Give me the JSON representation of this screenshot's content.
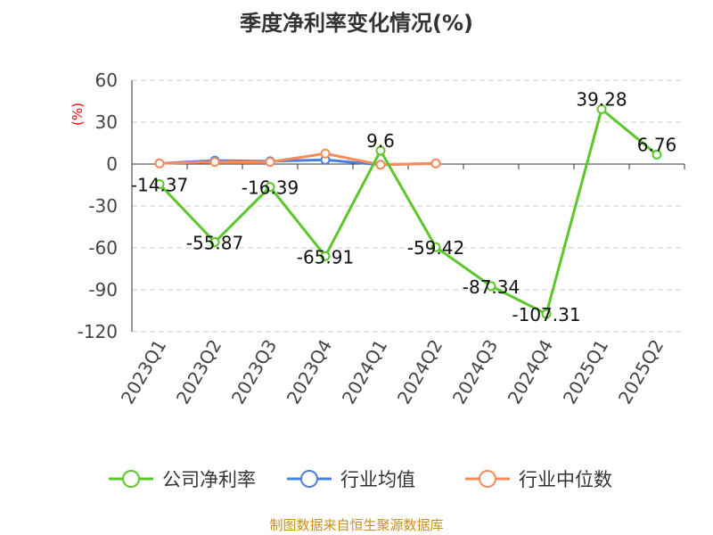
{
  "title": "季度净利率变化情况(%)",
  "source": "制图数据来自恒生聚源数据库",
  "chart_data": {
    "type": "line",
    "title": "季度净利率变化情况(%)",
    "ylabel": "(%)",
    "ylim": [
      -120,
      60
    ],
    "yticks": [
      60,
      30,
      0,
      -30,
      -60,
      -90,
      -120
    ],
    "categories": [
      "2023Q1",
      "2023Q2",
      "2023Q3",
      "2023Q4",
      "2024Q1",
      "2024Q2",
      "2024Q3",
      "2024Q4",
      "2025Q1",
      "2025Q2"
    ],
    "grid": true,
    "legend_placement": "bottom",
    "series": [
      {
        "name": "公司净利率",
        "color": "#5bc72a",
        "values": [
          -14.37,
          -55.87,
          -16.39,
          -65.91,
          9.6,
          -59.42,
          -87.34,
          -107.31,
          39.28,
          6.76
        ],
        "labels": [
          "-14.37",
          "-55.87",
          "-16.39",
          "-65.91",
          "9.6",
          "-59.42",
          "-87.34",
          "-107.31",
          "39.28",
          "6.76"
        ]
      },
      {
        "name": "行业均值",
        "color": "#4a7fe0",
        "values": [
          0.5,
          2.5,
          2,
          3,
          -0.5,
          0.5,
          null,
          null,
          null,
          null
        ]
      },
      {
        "name": "行业中位数",
        "color": "#f98b5b",
        "values": [
          0.5,
          1.5,
          1.5,
          7.5,
          -0.5,
          0.5,
          null,
          null,
          null,
          null
        ]
      }
    ]
  }
}
